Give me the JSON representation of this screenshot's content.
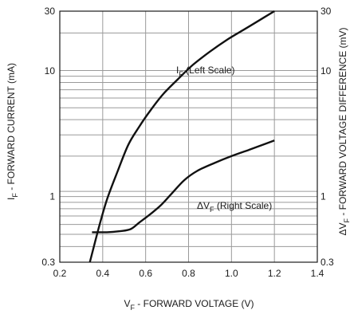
{
  "chart_data": {
    "type": "line",
    "xlabel": {
      "main": "V",
      "sub": "F",
      "rest": " - FORWARD VOLTAGE (V)"
    },
    "ylabel_left": {
      "main": "I",
      "sub": "F",
      "rest": " - FORWARD CURRENT (mA)"
    },
    "ylabel_right": {
      "main": "ΔV",
      "sub": "F",
      "rest": " - FORWARD VOLTAGE DIFFERENCE (mV)"
    },
    "xlim": [
      0.2,
      1.4
    ],
    "ylim": [
      0.3,
      30
    ],
    "yscale": "log",
    "x_ticks": [
      "0.2",
      "0.4",
      "0.6",
      "0.8",
      "1.0",
      "1.2",
      "1.4"
    ],
    "x_tick_values": [
      0.2,
      0.4,
      0.6,
      0.8,
      1.0,
      1.2,
      1.4
    ],
    "y_ticks_left": [
      "0.3",
      "1",
      "10",
      "30"
    ],
    "y_ticks_right": [
      "0.3",
      "1",
      "10",
      "30"
    ],
    "y_tick_values": [
      0.3,
      1,
      10,
      30
    ],
    "grid": true,
    "series": [
      {
        "name": "I_F (Left Scale)",
        "label": {
          "main": "I",
          "sub": "F",
          "rest": " (Left Scale)"
        },
        "x": [
          0.34,
          0.38,
          0.42,
          0.47,
          0.52,
          0.57,
          0.62,
          0.68,
          0.75,
          0.82,
          0.9,
          0.98,
          1.06,
          1.14,
          1.2
        ],
        "y": [
          0.3,
          0.55,
          0.95,
          1.6,
          2.6,
          3.6,
          4.8,
          6.5,
          8.6,
          11.2,
          14.3,
          17.8,
          21.5,
          26,
          30
        ]
      },
      {
        "name": "ΔV_F (Right Scale)",
        "label": {
          "main": "ΔV",
          "sub": "F",
          "rest": " (Right Scale)"
        },
        "x": [
          0.35,
          0.42,
          0.48,
          0.53,
          0.57,
          0.62,
          0.67,
          0.72,
          0.78,
          0.84,
          0.92,
          1.0,
          1.08,
          1.15,
          1.2
        ],
        "y": [
          0.52,
          0.52,
          0.53,
          0.55,
          0.62,
          0.72,
          0.85,
          1.05,
          1.35,
          1.6,
          1.85,
          2.1,
          2.35,
          2.6,
          2.8
        ]
      }
    ]
  }
}
